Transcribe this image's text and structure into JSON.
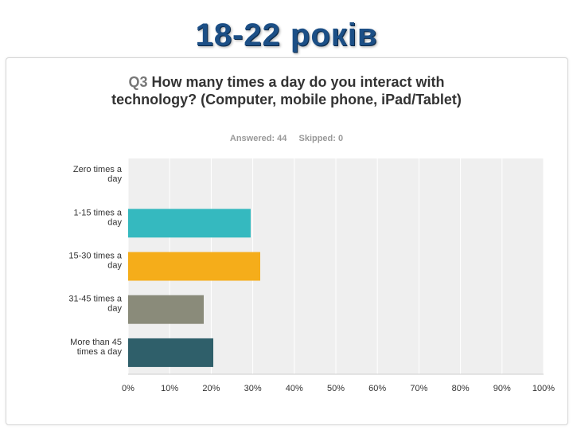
{
  "slide": {
    "title": "18-22 років"
  },
  "question": {
    "number": "Q3",
    "text": "How many times a day do you interact with technology? (Computer, mobile phone, iPad/Tablet)"
  },
  "stats": {
    "answered": "Answered: 44",
    "skipped": "Skipped: 0"
  },
  "chart_data": {
    "type": "bar",
    "orientation": "horizontal",
    "categories": [
      [
        "Zero times a",
        "day"
      ],
      [
        "1-15 times a",
        "day"
      ],
      [
        "15-30 times a",
        "day"
      ],
      [
        "31-45 times a",
        "day"
      ],
      [
        "More than 45",
        "times a day"
      ]
    ],
    "values": [
      0,
      29.5,
      31.8,
      18.2,
      20.5
    ],
    "colors": [
      "#35b9bf",
      "#35b9bf",
      "#f5ad1a",
      "#8a8b7a",
      "#2f5f6a"
    ],
    "xlim": [
      0,
      100
    ],
    "xticks": [
      "0%",
      "10%",
      "20%",
      "30%",
      "40%",
      "50%",
      "60%",
      "70%",
      "80%",
      "90%",
      "100%"
    ],
    "grid": true,
    "plot_background": "#efefef"
  }
}
